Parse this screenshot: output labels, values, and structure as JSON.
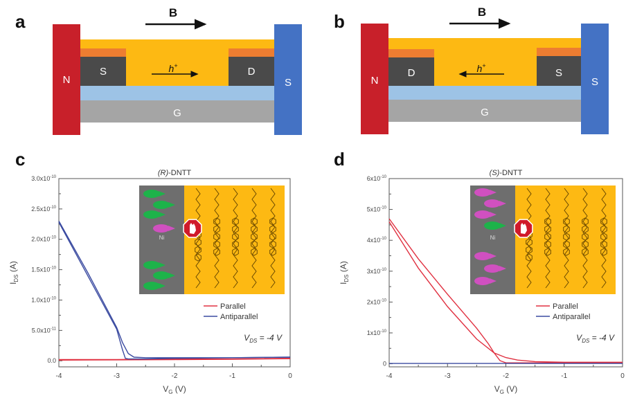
{
  "panels": {
    "a": {
      "letter": "a",
      "field_label": "B",
      "field_direction": "right",
      "magnet_left": "N",
      "magnet_right": "S",
      "left_electrode": "S",
      "right_electrode": "D",
      "gate": "G",
      "carrier_label": "h",
      "carrier_sup": "+",
      "carrier_direction": "right"
    },
    "b": {
      "letter": "b",
      "field_label": "B",
      "field_direction": "right",
      "magnet_left": "N",
      "magnet_right": "S",
      "left_electrode": "D",
      "right_electrode": "S",
      "gate": "G",
      "carrier_label": "h",
      "carrier_sup": "+",
      "carrier_direction": "left"
    },
    "c": {
      "letter": "c",
      "inset_label": "Ni"
    },
    "d": {
      "letter": "d",
      "inset_label": "Ni"
    }
  },
  "colors": {
    "magnet_north": "#c8202a",
    "magnet_south": "#4472c4",
    "semiconductor": "#fdb913",
    "contact_top": "#ed7d31",
    "electrode": "#4a4a4a",
    "dielectric": "#9dc3e6",
    "gate": "#a5a5a5",
    "parallel": "#e03040",
    "antiparallel": "#3a4aa0",
    "ni": "#6e6e6e",
    "spin_green": "#1db34a",
    "spin_magenta": "#d050c0",
    "stop_sign": "#d01a2a"
  },
  "chart_data": [
    {
      "type": "line",
      "panel": "c",
      "title_italic": "(R)",
      "title_rest": "-DNTT",
      "xlabel_main": "V",
      "xlabel_sub": "G",
      "xlabel_unit": " (V)",
      "ylabel_main": "I",
      "ylabel_sub": "DS",
      "ylabel_unit": " (A)",
      "xlim": [
        -4,
        0
      ],
      "ylim": [
        -1e-11,
        3e-10
      ],
      "xticks": [
        -4,
        -3,
        -2,
        -1,
        0
      ],
      "xtick_labels": [
        "-4",
        "-3",
        "-2",
        "-1",
        "0"
      ],
      "yticks": [
        0,
        5e-11,
        1e-10,
        1.5e-10,
        2e-10,
        2.5e-10,
        3e-10
      ],
      "ytick_labels": [
        {
          "mant": "0.0",
          "exp": ""
        },
        {
          "mant": "5.0x10",
          "exp": "-11"
        },
        {
          "mant": "1.0x10",
          "exp": "-10"
        },
        {
          "mant": "1.5x10",
          "exp": "-10"
        },
        {
          "mant": "2.0x10",
          "exp": "-10"
        },
        {
          "mant": "2.5x10",
          "exp": "-10"
        },
        {
          "mant": "3.0x10",
          "exp": "-10"
        }
      ],
      "annotation": {
        "main": "V",
        "sub": "DS",
        "rest": " = -4 V"
      },
      "legend": [
        "Parallel",
        "Antiparallel"
      ],
      "legend_position": "bottom-right",
      "series": [
        {
          "name": "Parallel",
          "color": "#e03040",
          "x": [
            -4,
            -3,
            -2,
            -1,
            0
          ],
          "y": [
            2e-12,
            2e-12,
            3e-12,
            3e-12,
            4e-12
          ]
        },
        {
          "name": "Parallel",
          "color": "#e03040",
          "x": [
            -4,
            -3,
            -2,
            -1,
            0
          ],
          "y": [
            1e-12,
            1.5e-12,
            2e-12,
            2.5e-12,
            3.5e-12
          ]
        },
        {
          "name": "Antiparallel",
          "color": "#3a4aa0",
          "x": [
            -4,
            -3.5,
            -3.0,
            -2.9,
            -2.8,
            -2.7,
            -2.5,
            -2.0,
            -1.0,
            0
          ],
          "y": [
            2.3e-10,
            1.45e-10,
            5.5e-11,
            3e-11,
            1.2e-11,
            6e-12,
            5e-12,
            5e-12,
            5e-12,
            6e-12
          ]
        },
        {
          "name": "Antiparallel",
          "color": "#3a4aa0",
          "x": [
            -4,
            -3.5,
            -3.0,
            -2.9,
            -2.85,
            -2.8,
            -2.5,
            -2.0,
            -1.0,
            0
          ],
          "y": [
            2.28e-10,
            1.4e-10,
            5.2e-11,
            1.8e-11,
            4e-12,
            3e-12,
            3e-12,
            4e-12,
            5e-12,
            6e-12
          ]
        }
      ]
    },
    {
      "type": "line",
      "panel": "d",
      "title_italic": "(S)",
      "title_rest": "-DNTT",
      "xlabel_main": "V",
      "xlabel_sub": "G",
      "xlabel_unit": " (V)",
      "ylabel_main": "I",
      "ylabel_sub": "DS",
      "ylabel_unit": " (A)",
      "xlim": [
        -4,
        0
      ],
      "ylim": [
        -1e-11,
        6e-10
      ],
      "xticks": [
        -4,
        -3,
        -2,
        -1,
        0
      ],
      "xtick_labels": [
        "-4",
        "-3",
        "-2",
        "-1",
        "0"
      ],
      "yticks": [
        0,
        1e-10,
        2e-10,
        3e-10,
        4e-10,
        5e-10,
        6e-10
      ],
      "ytick_labels": [
        {
          "mant": "0",
          "exp": ""
        },
        {
          "mant": "1x10",
          "exp": "-10"
        },
        {
          "mant": "2x10",
          "exp": "-10"
        },
        {
          "mant": "3x10",
          "exp": "-10"
        },
        {
          "mant": "4x10",
          "exp": "-10"
        },
        {
          "mant": "5x10",
          "exp": "-10"
        },
        {
          "mant": "6x10",
          "exp": "-10"
        }
      ],
      "annotation": {
        "main": "V",
        "sub": "DS",
        "rest": " = -4 V"
      },
      "legend": [
        "Parallel",
        "Antiparallel"
      ],
      "legend_position": "bottom-right",
      "series": [
        {
          "name": "Parallel",
          "color": "#e03040",
          "x": [
            -4,
            -3.5,
            -3.0,
            -2.5,
            -2.3,
            -2.2,
            -2.1,
            -2.0,
            -1.8,
            -1.5,
            -1.0,
            0
          ],
          "y": [
            4.7e-10,
            3.4e-10,
            2.25e-10,
            1.15e-10,
            6.5e-11,
            3.5e-11,
            1e-11,
            3e-12,
            3e-12,
            3e-12,
            3e-12,
            3e-12
          ]
        },
        {
          "name": "Parallel",
          "color": "#e03040",
          "x": [
            -4,
            -3.5,
            -3.0,
            -2.5,
            -2.2,
            -2.0,
            -1.8,
            -1.5,
            -1.0,
            0
          ],
          "y": [
            4.6e-10,
            3.1e-10,
            1.85e-10,
            8e-11,
            3.5e-11,
            2e-11,
            1.2e-11,
            7e-12,
            5e-12,
            5e-12
          ]
        },
        {
          "name": "Antiparallel",
          "color": "#3a4aa0",
          "x": [
            -4,
            -3,
            -2,
            -1,
            0
          ],
          "y": [
            1e-12,
            1e-12,
            1e-12,
            1e-12,
            1e-12
          ]
        }
      ]
    }
  ]
}
